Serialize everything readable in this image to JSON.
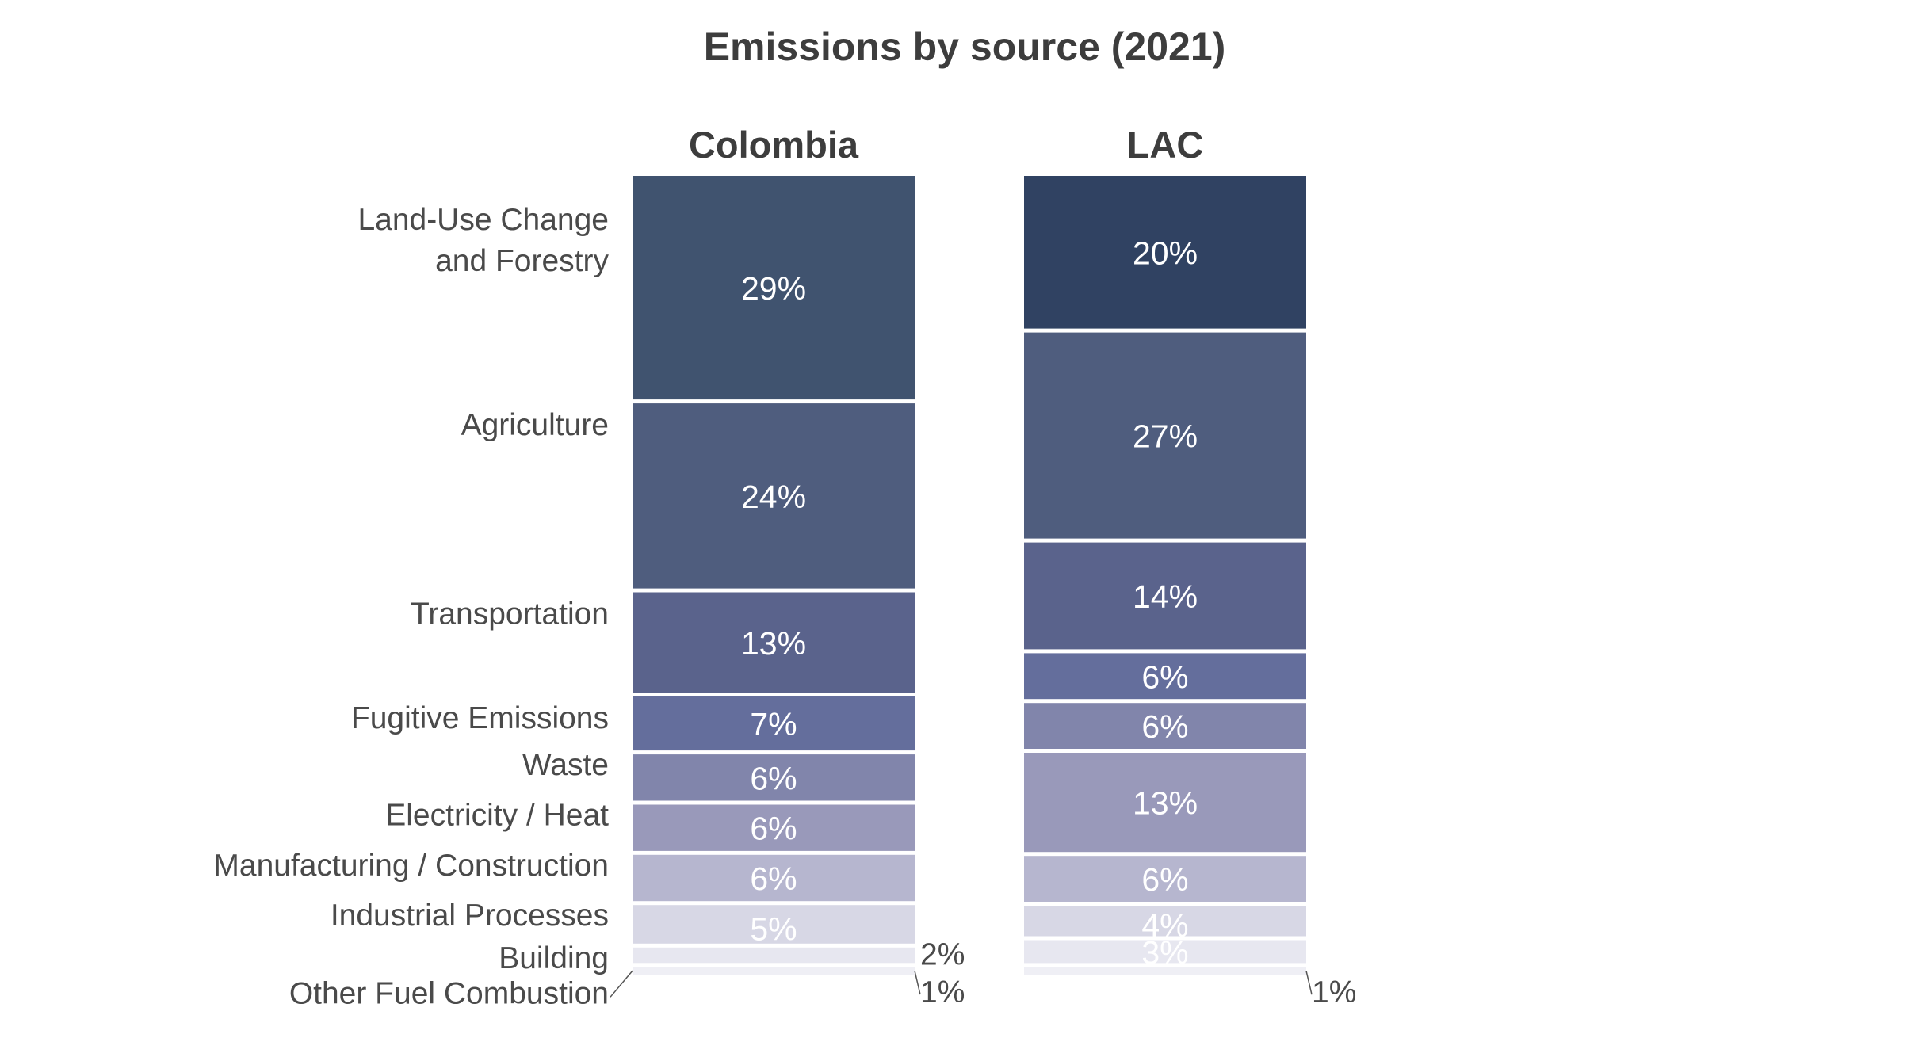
{
  "chart_data": {
    "type": "bar",
    "subtype": "100% stacked column",
    "title": "Emissions by source (2021)",
    "categories": [
      "Colombia",
      "LAC"
    ],
    "series": [
      {
        "name": "Land-Use Change and Forestry",
        "label_lines": [
          "Land-Use Change",
          "and Forestry"
        ],
        "values": [
          29,
          20
        ],
        "color_by_category": [
          "#40536f",
          "#304262"
        ]
      },
      {
        "name": "Agriculture",
        "label_lines": [
          "Agriculture"
        ],
        "values": [
          24,
          27
        ],
        "color_by_category": [
          "#4f5d7e",
          "#4f5d7e"
        ]
      },
      {
        "name": "Transportation",
        "label_lines": [
          "Transportation"
        ],
        "values": [
          13,
          14
        ],
        "color_by_category": [
          "#5a638c",
          "#5a638c"
        ]
      },
      {
        "name": "Fugitive Emissions",
        "label_lines": [
          "Fugitive Emissions"
        ],
        "values": [
          7,
          6
        ],
        "color_by_category": [
          "#646e9c",
          "#646e9c"
        ]
      },
      {
        "name": "Waste",
        "label_lines": [
          "Waste"
        ],
        "values": [
          6,
          6
        ],
        "color_by_category": [
          "#8185ab",
          "#8185ab"
        ]
      },
      {
        "name": "Electricity / Heat",
        "label_lines": [
          "Electricity / Heat"
        ],
        "values": [
          6,
          13
        ],
        "color_by_category": [
          "#9999ba",
          "#9999ba"
        ]
      },
      {
        "name": "Manufacturing / Construction",
        "label_lines": [
          "Manufacturing / Construction"
        ],
        "values": [
          6,
          6
        ],
        "color_by_category": [
          "#b6b6cf",
          "#b6b6cf"
        ]
      },
      {
        "name": "Industrial Processes",
        "label_lines": [
          "Industrial Processes"
        ],
        "values": [
          5,
          4
        ],
        "color_by_category": [
          "#d7d7e5",
          "#d7d7e5"
        ]
      },
      {
        "name": "Building",
        "label_lines": [
          "Building"
        ],
        "values": [
          2,
          3
        ],
        "color_by_category": [
          "#e7e7f0",
          "#e7e7f0"
        ]
      },
      {
        "name": "Other Fuel Combustion",
        "label_lines": [
          "Other Fuel Combustion"
        ],
        "values": [
          1,
          1
        ],
        "color_by_category": [
          "#efeff5",
          "#efeff5"
        ]
      }
    ],
    "value_suffix": "%",
    "legend": "left, category labels aligned to Colombia segments",
    "grid": false,
    "axes_visible": false,
    "label_text_colors": {
      "on_dark": "#ffffff",
      "outside": "#4a4a4a"
    }
  }
}
